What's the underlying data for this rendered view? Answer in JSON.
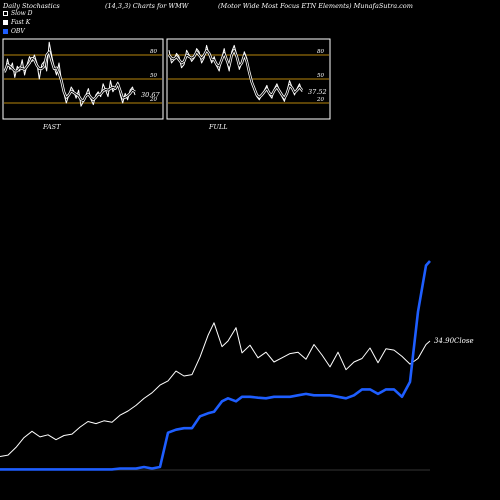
{
  "header": {
    "left": "Daily Stochastics",
    "center": "(14,3,3) Charts for WMW",
    "right": "(Motor Wide   Most Focus ETN  Elements) MunafaSutra.com"
  },
  "legend": [
    {
      "label": "Slow  D",
      "color": "#000000"
    },
    {
      "label": "Fast K",
      "color": "#ffffff"
    },
    {
      "label": "OBV",
      "color": "#1e5eff"
    }
  ],
  "colors": {
    "band": "#b8860b",
    "fast": "#ffffff",
    "slow": "#000000",
    "price": "#ffffff",
    "obv": "#1e5eff",
    "background": "#000000"
  },
  "chart_data": [
    {
      "type": "line",
      "title": "FAST",
      "ylim": [
        0,
        100
      ],
      "yticks": [
        80,
        50,
        20
      ],
      "bands": [
        80,
        50,
        20
      ],
      "last_value_label": "30.67",
      "series": [
        {
          "name": "Fast K",
          "values": [
            58,
            75,
            62,
            70,
            52,
            66,
            60,
            74,
            55,
            68,
            78,
            72,
            80,
            70,
            50,
            68,
            72,
            60,
            96,
            80,
            65,
            55,
            70,
            48,
            32,
            20,
            30,
            40,
            35,
            26,
            36,
            16,
            22,
            30,
            38,
            25,
            18,
            30,
            34,
            28,
            44,
            36,
            28,
            48,
            34,
            40,
            46,
            30,
            20,
            32,
            24,
            36,
            40,
            30
          ]
        },
        {
          "name": "Slow  D",
          "values": [
            60,
            68,
            66,
            63,
            60,
            60,
            64,
            63,
            62,
            66,
            70,
            76,
            74,
            67,
            63,
            63,
            66,
            80,
            84,
            73,
            63,
            64,
            57,
            48,
            34,
            27,
            30,
            35,
            33,
            31,
            29,
            24,
            23,
            29,
            31,
            27,
            24,
            27,
            31,
            31,
            35,
            37,
            36,
            38,
            40,
            38,
            44,
            35,
            26,
            27,
            29,
            32,
            36,
            34
          ]
        }
      ]
    },
    {
      "type": "line",
      "title": "FULL",
      "ylim": [
        0,
        100
      ],
      "yticks": [
        80,
        50,
        20
      ],
      "bands": [
        80,
        50,
        20
      ],
      "last_value_label": "37.52",
      "series": [
        {
          "name": "Fast K",
          "values": [
            86,
            70,
            74,
            82,
            78,
            64,
            68,
            86,
            80,
            72,
            76,
            88,
            84,
            70,
            76,
            92,
            80,
            70,
            78,
            66,
            60,
            76,
            88,
            72,
            60,
            84,
            92,
            80,
            62,
            70,
            84,
            76,
            58,
            44,
            36,
            28,
            24,
            30,
            36,
            42,
            30,
            26,
            38,
            44,
            36,
            28,
            22,
            34,
            48,
            40,
            30,
            38,
            44,
            34
          ]
        },
        {
          "name": "Slow  D",
          "values": [
            80,
            76,
            75,
            78,
            74,
            70,
            72,
            80,
            78,
            76,
            78,
            84,
            80,
            76,
            80,
            86,
            82,
            74,
            74,
            68,
            66,
            74,
            82,
            74,
            66,
            80,
            86,
            78,
            66,
            70,
            80,
            72,
            58,
            46,
            38,
            30,
            27,
            30,
            34,
            38,
            32,
            30,
            36,
            40,
            35,
            30,
            26,
            32,
            42,
            39,
            33,
            36,
            40,
            36
          ]
        }
      ]
    },
    {
      "type": "line",
      "title": "",
      "price_label": "34.90Close",
      "x": [
        0,
        8,
        16,
        24,
        32,
        40,
        48,
        56,
        64,
        72,
        80,
        88,
        96,
        104,
        112,
        120,
        128,
        136,
        144,
        152,
        160,
        168,
        176,
        184,
        192,
        200,
        208,
        214,
        222,
        228,
        236,
        242,
        250,
        258,
        266,
        274,
        282,
        290,
        298,
        306,
        314,
        322,
        330,
        338,
        346,
        354,
        362,
        370,
        378,
        386,
        394,
        402,
        410,
        418,
        426,
        430
      ],
      "series": [
        {
          "name": "Price",
          "values": [
            32.65,
            32.67,
            32.78,
            32.92,
            33.01,
            32.93,
            32.96,
            32.89,
            32.95,
            32.97,
            33.07,
            33.15,
            33.12,
            33.16,
            33.14,
            33.24,
            33.3,
            33.38,
            33.48,
            33.56,
            33.67,
            33.73,
            33.87,
            33.8,
            33.82,
            34.07,
            34.38,
            34.56,
            34.22,
            34.3,
            34.49,
            34.13,
            34.24,
            34.06,
            34.14,
            34.0,
            34.06,
            34.12,
            34.14,
            34.04,
            34.25,
            34.1,
            33.93,
            34.14,
            33.89,
            34.0,
            34.05,
            34.2,
            33.99,
            34.19,
            34.17,
            34.08,
            33.97,
            34.05,
            34.25,
            34.3
          ]
        },
        {
          "name": "OBV",
          "values": [
            -0.18,
            -0.18,
            -0.18,
            -0.18,
            -0.18,
            -0.18,
            -0.18,
            -0.18,
            -0.18,
            -0.18,
            -0.18,
            -0.18,
            -0.18,
            -0.18,
            -0.18,
            -0.15,
            -0.15,
            -0.15,
            -0.1,
            -0.15,
            -0.1,
            1.05,
            1.15,
            1.2,
            1.2,
            1.6,
            1.7,
            1.75,
            2.1,
            2.2,
            2.1,
            2.25,
            2.25,
            2.22,
            2.2,
            2.25,
            2.25,
            2.25,
            2.3,
            2.35,
            2.3,
            2.3,
            2.3,
            2.25,
            2.2,
            2.3,
            2.5,
            2.5,
            2.35,
            2.5,
            2.5,
            2.25,
            2.75,
            5.1,
            6.65,
            6.8
          ]
        }
      ]
    }
  ]
}
